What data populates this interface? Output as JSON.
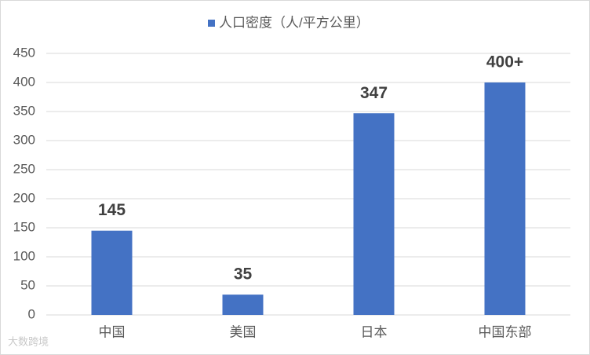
{
  "chart_data": {
    "type": "bar",
    "categories": [
      "中国",
      "美国",
      "日本",
      "中国东部"
    ],
    "series": [
      {
        "name": "人口密度（人/平方公里）",
        "color": "#4472c4",
        "values": [
          145,
          35,
          347,
          400
        ],
        "value_labels": [
          "145",
          "35",
          "347",
          "400+"
        ]
      }
    ],
    "ylim": [
      0,
      450
    ],
    "yticks": [
      0,
      50,
      100,
      150,
      200,
      250,
      300,
      350,
      400,
      450
    ],
    "grid": true,
    "legend": "top",
    "watermark": "大数跨境"
  }
}
